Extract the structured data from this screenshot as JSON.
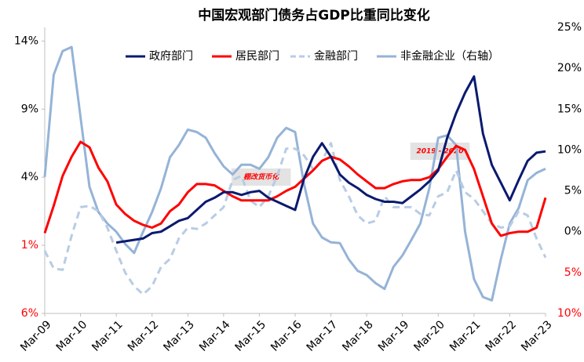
{
  "chart_data": {
    "type": "line",
    "title": "中国宏观部门债务占GDP比重同比变化",
    "categories": [
      "Mar-09",
      null,
      null,
      null,
      "Mar-10",
      null,
      null,
      null,
      "Mar-11",
      null,
      null,
      null,
      "Mar-12",
      null,
      null,
      null,
      "Mar-13",
      null,
      null,
      null,
      "Mar-14",
      null,
      null,
      null,
      "Mar-15",
      null,
      null,
      null,
      "Mar-16",
      null,
      null,
      null,
      "Mar-17",
      null,
      null,
      null,
      "Mar-18",
      null,
      null,
      null,
      "Mar-19",
      null,
      null,
      null,
      "Mar-20",
      null,
      null,
      null,
      "Mar-21",
      null,
      null,
      null,
      "Mar-22",
      null,
      null,
      null,
      "Mar-23"
    ],
    "series": [
      {
        "name": "政府部门",
        "color": "#0a1a6e",
        "values": [
          null,
          null,
          null,
          null,
          null,
          null,
          null,
          null,
          -0.8,
          -0.7,
          -0.6,
          -0.5,
          -0.1,
          0.0,
          0.4,
          0.8,
          1.0,
          1.6,
          2.2,
          2.5,
          2.9,
          2.9,
          2.7,
          2.9,
          3.0,
          2.5,
          2.2,
          1.9,
          1.6,
          3.9,
          5.5,
          6.5,
          5.5,
          4.2,
          3.6,
          3.2,
          2.7,
          2.4,
          2.2,
          2.2,
          2.1,
          2.6,
          3.1,
          3.7,
          4.5,
          6.9,
          8.7,
          10.2,
          11.4,
          7.2,
          4.9,
          3.6,
          2.3,
          3.8,
          5.2,
          5.8,
          5.9
        ]
      },
      {
        "name": "居民部门",
        "color": "#ff0000",
        "values": [
          -0.1,
          1.9,
          4.1,
          5.5,
          6.6,
          6.2,
          4.7,
          3.7,
          2.0,
          1.3,
          0.8,
          0.5,
          0.3,
          0.6,
          1.5,
          2.0,
          2.9,
          3.5,
          3.5,
          3.4,
          3.0,
          2.6,
          2.3,
          2.3,
          2.3,
          2.3,
          2.6,
          3.0,
          3.3,
          3.9,
          4.5,
          5.2,
          5.5,
          5.3,
          4.8,
          4.2,
          3.7,
          3.2,
          3.2,
          3.5,
          3.7,
          3.8,
          3.8,
          4.0,
          4.6,
          5.5,
          6.3,
          6.0,
          4.6,
          2.6,
          0.6,
          -0.3,
          -0.1,
          0.0,
          0.0,
          0.3,
          2.5
        ]
      },
      {
        "name": "金融部门",
        "color": "#b8cce4",
        "dashed": true,
        "values": [
          -1.4,
          -2.7,
          -2.8,
          -0.3,
          1.8,
          1.9,
          1.5,
          0.3,
          -1.4,
          -3.0,
          -4.0,
          -4.6,
          -4.0,
          -2.6,
          -2.0,
          -0.5,
          0.3,
          0.2,
          0.6,
          1.2,
          1.8,
          3.8,
          4.1,
          2.3,
          1.8,
          2.6,
          4.1,
          6.1,
          6.1,
          5.6,
          4.6,
          5.2,
          6.5,
          3.8,
          2.6,
          1.2,
          0.6,
          0.8,
          2.6,
          1.8,
          1.8,
          1.8,
          1.3,
          1.2,
          2.6,
          2.9,
          4.5,
          2.9,
          2.4,
          1.5,
          0.6,
          0.3,
          0.4,
          1.5,
          1.2,
          -0.5,
          -1.9
        ]
      },
      {
        "name": "非金融企业（右轴）",
        "color": "#95b3d7",
        "axis": "y2",
        "values": [
          6.7,
          19.2,
          22.1,
          22.6,
          14.0,
          5.5,
          2.4,
          1.0,
          0.0,
          -1.5,
          -2.6,
          0.0,
          2.4,
          5.3,
          9.1,
          10.6,
          12.5,
          12.2,
          11.5,
          9.6,
          8.0,
          7.0,
          8.2,
          8.2,
          7.7,
          9.1,
          11.5,
          12.7,
          12.2,
          5.8,
          1.0,
          -0.7,
          -1.3,
          -1.4,
          -3.4,
          -4.8,
          -5.3,
          -6.3,
          -7.0,
          -4.3,
          -2.9,
          -1.0,
          1.0,
          5.3,
          11.5,
          11.8,
          10.6,
          0.0,
          -5.8,
          -8.0,
          -8.4,
          -3.4,
          1.0,
          2.9,
          6.3,
          7.2,
          7.7
        ]
      }
    ],
    "ylim": [
      -6,
      15
    ],
    "yticks": [
      {
        "value": 14,
        "label": "14%"
      },
      {
        "value": 9,
        "label": "9%"
      },
      {
        "value": 4,
        "label": "4%"
      },
      {
        "value": -1,
        "label": "1%"
      },
      {
        "value": -6,
        "label": "6%"
      }
    ],
    "y2lim": [
      -10,
      25
    ],
    "y2ticks": [
      {
        "value": 25,
        "label": "25%"
      },
      {
        "value": 20,
        "label": "20%"
      },
      {
        "value": 15,
        "label": "15%"
      },
      {
        "value": 10,
        "label": "10%"
      },
      {
        "value": 5,
        "label": "5%"
      },
      {
        "value": 0,
        "label": "0%"
      },
      {
        "value": -5,
        "label": "5%"
      },
      {
        "value": -10,
        "label": "10%"
      }
    ],
    "negative_tick_color": "#ff0000",
    "legend": "top",
    "annotations": [
      {
        "text": "棚改货币化",
        "from": "Mar-14",
        "to": "Mar-15"
      },
      {
        "text": "2019 - 2020",
        "from": "Mar-19",
        "to": "Mar-20"
      }
    ]
  }
}
